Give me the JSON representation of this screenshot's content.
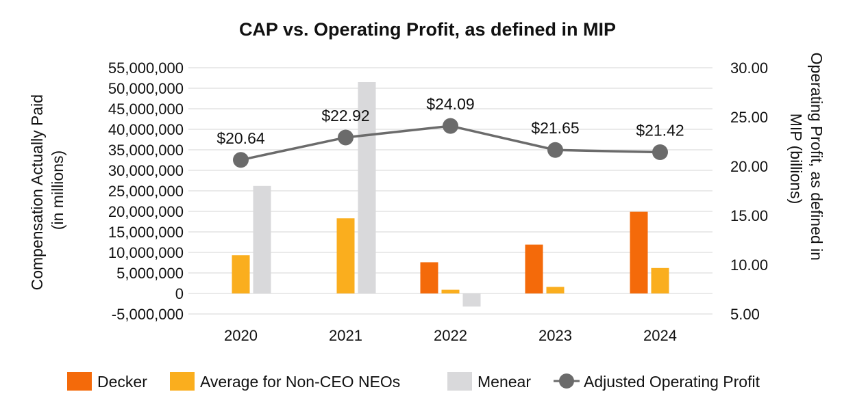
{
  "chart_data": {
    "type": "bar",
    "title": "CAP vs. Operating Profit, as defined in MIP",
    "categories": [
      "2020",
      "2021",
      "2022",
      "2023",
      "2024"
    ],
    "ylabel": "Compensation Actually Paid (in millions)",
    "ylabel_lines": [
      "Compensation Actually Paid",
      "(in millions)"
    ],
    "y2label": "Operating Profit, as defined in MIP (billions)",
    "y2label_lines": [
      "Operating Profit, as defined in",
      "MIP  (billions)"
    ],
    "ylim": [
      -5000000,
      55000000
    ],
    "y_ticks": [
      -5000000,
      0,
      5000000,
      10000000,
      15000000,
      20000000,
      25000000,
      30000000,
      35000000,
      40000000,
      45000000,
      50000000,
      55000000
    ],
    "y_tick_labels": [
      "-5,000,000",
      "0",
      "5,000,000",
      "10,000,000",
      "15,000,000",
      "20,000,000",
      "25,000,000",
      "30,000,000",
      "35,000,000",
      "40,000,000",
      "45,000,000",
      "50,000,000",
      "55,000,000"
    ],
    "y2lim": [
      5,
      30
    ],
    "y2_ticks": [
      5,
      10,
      15,
      20,
      25,
      30
    ],
    "y2_tick_labels": [
      "5.00",
      "10.00",
      "15.00",
      "20.00",
      "25.00",
      "30.00"
    ],
    "grid": true,
    "legend_position": "bottom",
    "series": [
      {
        "name": "Decker",
        "type": "bar",
        "axis": "left",
        "color": "#F46A0A",
        "values": [
          null,
          null,
          7600000,
          11900000,
          19900000
        ]
      },
      {
        "name": "Average for Non-CEO NEOs",
        "type": "bar",
        "axis": "left",
        "color": "#FAAE1E",
        "values": [
          9300000,
          18300000,
          900000,
          1600000,
          6200000
        ]
      },
      {
        "name": "Menear",
        "type": "bar",
        "axis": "left",
        "color": "#D9D9DB",
        "values": [
          26200000,
          51500000,
          -3200000,
          null,
          null
        ]
      },
      {
        "name": "Adjusted Operating Profit",
        "type": "line",
        "axis": "right",
        "color": "#6B6B6B",
        "values": [
          20.64,
          22.92,
          24.09,
          21.65,
          21.42
        ],
        "labels": [
          "$20.64",
          "$22.92",
          "$24.09",
          "$21.65",
          "$21.42"
        ]
      }
    ]
  }
}
